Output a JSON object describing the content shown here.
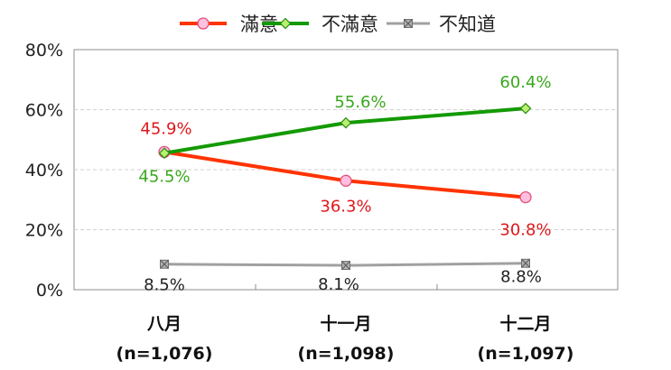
{
  "chart_data": {
    "type": "line",
    "categories": [
      "八月",
      "十一月",
      "十二月"
    ],
    "category_sublabels": [
      "(n=1,076)",
      "(n=1,098)",
      "(n=1,097)"
    ],
    "ylim": [
      0,
      80
    ],
    "yticks": [
      0,
      20,
      40,
      60,
      80
    ],
    "ytick_labels": [
      "0%",
      "20%",
      "40%",
      "60%",
      "80%"
    ],
    "grid": true,
    "legend_placement": "top",
    "series": [
      {
        "name": "滿意",
        "values": [
          45.9,
          36.3,
          30.8
        ],
        "labels": [
          "45.9%",
          "36.3%",
          "30.8%"
        ],
        "color": "#ff3300",
        "label_color": "#e0181b",
        "marker": "circle",
        "marker_fill": "#ffc0dd",
        "marker_stroke": "#e05080"
      },
      {
        "name": "不滿意",
        "values": [
          45.5,
          55.6,
          60.4
        ],
        "labels": [
          "45.5%",
          "55.6%",
          "60.4%"
        ],
        "color": "#139a00",
        "label_color": "#3aa81e",
        "marker": "diamond",
        "marker_fill": "#b8f070",
        "marker_stroke": "#2a8a10"
      },
      {
        "name": "不知道",
        "values": [
          8.5,
          8.1,
          8.8
        ],
        "labels": [
          "8.5%",
          "8.1%",
          "8.8%"
        ],
        "color": "#a0a0a0",
        "label_color": "#222222",
        "marker": "square-x",
        "marker_fill": "#b0b0b0",
        "marker_stroke": "#707070"
      }
    ]
  }
}
